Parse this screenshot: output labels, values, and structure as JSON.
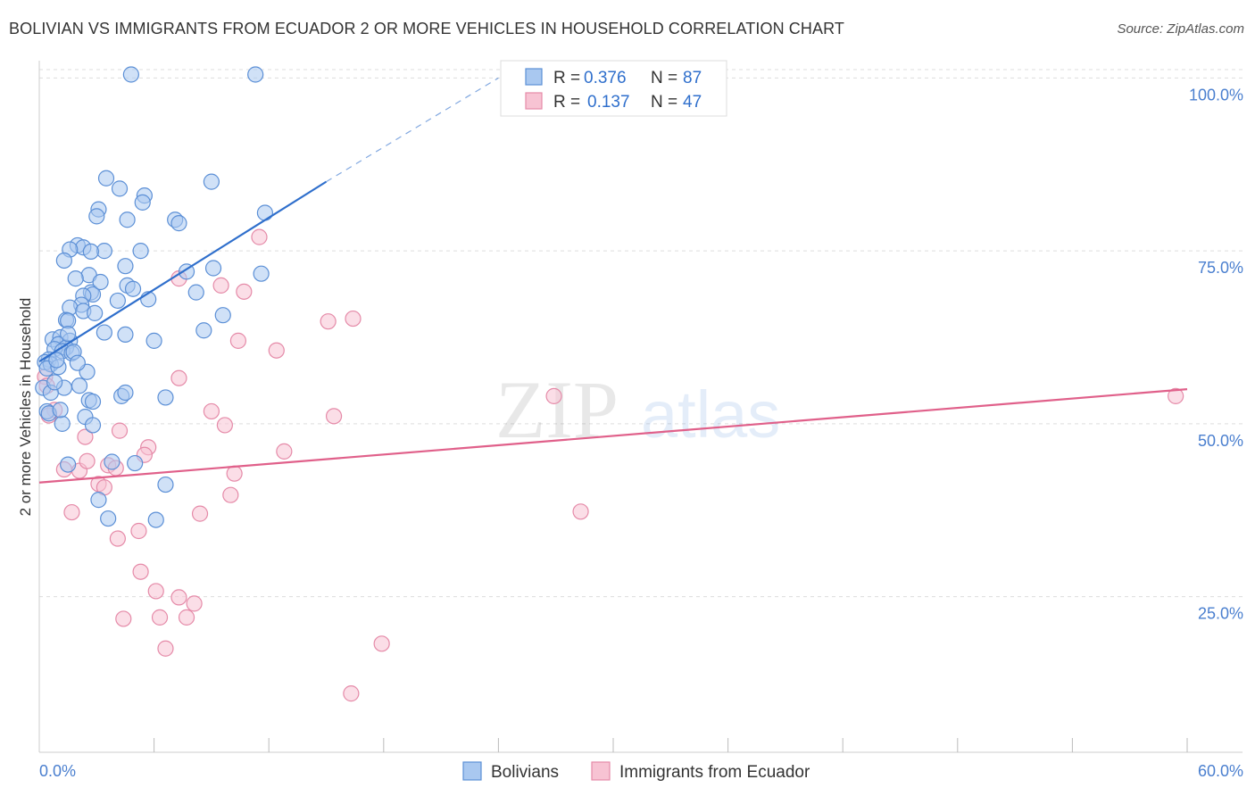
{
  "header": {
    "title": "BOLIVIAN VS IMMIGRANTS FROM ECUADOR 2 OR MORE VEHICLES IN HOUSEHOLD CORRELATION CHART",
    "source": "Source: ZipAtlas.com"
  },
  "watermark": {
    "part1": "ZIP",
    "part2": "atlas"
  },
  "colors": {
    "blue_fill": "#a9c8f0",
    "blue_stroke": "#5b8fd6",
    "blue_line": "#2f6fcc",
    "pink_fill": "#f7c3d3",
    "pink_stroke": "#e58aa8",
    "pink_line": "#e0608a",
    "tick_text": "#4a7fcf",
    "grid": "#dddddd"
  },
  "legend": {
    "r_label": "R =",
    "n_label": "N =",
    "rows": [
      {
        "series": "Bolivians",
        "r": "0.376",
        "n": "87"
      },
      {
        "series": "Immigrants from Ecuador",
        "r": "0.137",
        "n": "47"
      }
    ]
  },
  "chart_data": {
    "type": "scatter",
    "title": "BOLIVIAN VS IMMIGRANTS FROM ECUADOR 2 OR MORE VEHICLES IN HOUSEHOLD CORRELATION CHART",
    "xlabel": "",
    "ylabel": "2 or more Vehicles in Household",
    "xlim": [
      0,
      60
    ],
    "ylim": [
      2.5,
      102.5
    ],
    "x_tick_labels": [
      {
        "value": 0,
        "label": "0.0%"
      },
      {
        "value": 60,
        "label": "60.0%"
      }
    ],
    "x_minor_ticks": [
      6,
      12,
      18,
      24,
      30,
      36,
      42,
      48,
      54,
      60
    ],
    "y_ticks": [
      {
        "value": 25,
        "label": "25.0%"
      },
      {
        "value": 50,
        "label": "50.0%"
      },
      {
        "value": 75,
        "label": "75.0%"
      },
      {
        "value": 100,
        "label": "100.0%"
      }
    ],
    "legend_position": "top-center",
    "series": [
      {
        "name": "Bolivians",
        "color": "blue",
        "r": 0.376,
        "n": 87,
        "trend": {
          "x1": 0,
          "y1": 59,
          "x2": 15,
          "y2": 85,
          "dashed_to_x": 24,
          "dashed_to_y": 100
        },
        "points": [
          [
            4.8,
            100.5
          ],
          [
            11.3,
            100.5
          ],
          [
            3.5,
            85.5
          ],
          [
            4.2,
            84
          ],
          [
            5.5,
            83
          ],
          [
            5.4,
            82
          ],
          [
            9,
            85
          ],
          [
            3.1,
            81
          ],
          [
            3,
            80
          ],
          [
            4.6,
            79.5
          ],
          [
            7.1,
            79.5
          ],
          [
            7.3,
            79
          ],
          [
            11.8,
            80.5
          ],
          [
            2,
            75.8
          ],
          [
            2.3,
            75.5
          ],
          [
            1.6,
            75.2
          ],
          [
            3.4,
            75
          ],
          [
            2.7,
            74.9
          ],
          [
            5.3,
            75
          ],
          [
            1.3,
            73.6
          ],
          [
            9.1,
            72.5
          ],
          [
            4.5,
            72.8
          ],
          [
            11.6,
            71.7
          ],
          [
            2.6,
            71.5
          ],
          [
            1.9,
            71
          ],
          [
            4.6,
            70
          ],
          [
            4.9,
            69.5
          ],
          [
            2.7,
            69
          ],
          [
            2.8,
            68.7
          ],
          [
            8.2,
            69
          ],
          [
            2.3,
            68.5
          ],
          [
            4.1,
            67.8
          ],
          [
            2.2,
            67.2
          ],
          [
            1.6,
            66.8
          ],
          [
            2.3,
            66.3
          ],
          [
            9.6,
            65.7
          ],
          [
            1.4,
            65
          ],
          [
            1.5,
            64.9
          ],
          [
            3.4,
            63.2
          ],
          [
            4.5,
            62.9
          ],
          [
            8.6,
            63.5
          ],
          [
            0.7,
            62.2
          ],
          [
            1.1,
            62.5
          ],
          [
            1.6,
            62
          ],
          [
            1,
            61.5
          ],
          [
            1.4,
            61
          ],
          [
            0.8,
            60.8
          ],
          [
            1.2,
            60.5
          ],
          [
            1.7,
            60.2
          ],
          [
            1.8,
            60.4
          ],
          [
            0.5,
            59.3
          ],
          [
            0.3,
            58.9
          ],
          [
            0.6,
            58.6
          ],
          [
            0.4,
            58
          ],
          [
            1,
            58.2
          ],
          [
            2.5,
            57.5
          ],
          [
            0.2,
            55.2
          ],
          [
            1.3,
            55.2
          ],
          [
            2.1,
            55.5
          ],
          [
            0.6,
            54.5
          ],
          [
            4.3,
            54
          ],
          [
            4.5,
            54.5
          ],
          [
            6.6,
            53.8
          ],
          [
            2.6,
            53.4
          ],
          [
            2.8,
            53.2
          ],
          [
            0.4,
            51.8
          ],
          [
            0.5,
            51.5
          ],
          [
            2.4,
            51
          ],
          [
            1.2,
            50
          ],
          [
            2.8,
            49.8
          ],
          [
            3.8,
            44.5
          ],
          [
            5,
            44.3
          ],
          [
            1.5,
            44.1
          ],
          [
            6.6,
            41.2
          ],
          [
            3.1,
            39
          ],
          [
            3.6,
            36.3
          ],
          [
            6.1,
            36.1
          ],
          [
            0.9,
            59.2
          ],
          [
            2,
            58.8
          ],
          [
            1.5,
            63
          ],
          [
            3.2,
            70.5
          ],
          [
            6,
            62
          ],
          [
            0.8,
            56
          ],
          [
            2.9,
            66
          ],
          [
            1.1,
            52
          ],
          [
            5.7,
            68
          ],
          [
            7.7,
            72
          ]
        ]
      },
      {
        "name": "Immigrants from Ecuador",
        "color": "pink",
        "r": 0.137,
        "n": 47,
        "trend": {
          "x1": 0,
          "y1": 41.5,
          "x2": 60,
          "y2": 55
        },
        "points": [
          [
            0.3,
            56.8
          ],
          [
            0.4,
            55.5
          ],
          [
            0.8,
            52
          ],
          [
            0.5,
            51.2
          ],
          [
            1.3,
            43.4
          ],
          [
            2.1,
            43.2
          ],
          [
            1.7,
            37.2
          ],
          [
            2.4,
            48.1
          ],
          [
            2.5,
            44.6
          ],
          [
            3.6,
            44
          ],
          [
            3.1,
            41.3
          ],
          [
            3.4,
            40.8
          ],
          [
            4.0,
            43.6
          ],
          [
            4.2,
            49
          ],
          [
            5.7,
            46.6
          ],
          [
            5.5,
            45.5
          ],
          [
            5.2,
            34.5
          ],
          [
            5.3,
            28.6
          ],
          [
            6.1,
            25.8
          ],
          [
            6.3,
            22
          ],
          [
            7.3,
            24.9
          ],
          [
            8.1,
            24
          ],
          [
            7.7,
            22
          ],
          [
            6.6,
            17.5
          ],
          [
            7.3,
            71
          ],
          [
            7.3,
            56.6
          ],
          [
            9,
            51.8
          ],
          [
            9.7,
            49.8
          ],
          [
            10.2,
            42.8
          ],
          [
            10,
            39.7
          ],
          [
            8.4,
            37
          ],
          [
            9.5,
            70
          ],
          [
            10.7,
            69.1
          ],
          [
            11.5,
            77
          ],
          [
            10.4,
            62
          ],
          [
            12.4,
            60.6
          ],
          [
            15.1,
            64.8
          ],
          [
            16.4,
            65.2
          ],
          [
            12.8,
            46
          ],
          [
            15.4,
            51.1
          ],
          [
            17.9,
            18.2
          ],
          [
            16.3,
            11
          ],
          [
            26.9,
            54
          ],
          [
            28.3,
            37.3
          ],
          [
            59.4,
            54
          ],
          [
            4.1,
            33.4
          ],
          [
            4.4,
            21.8
          ]
        ]
      }
    ]
  }
}
